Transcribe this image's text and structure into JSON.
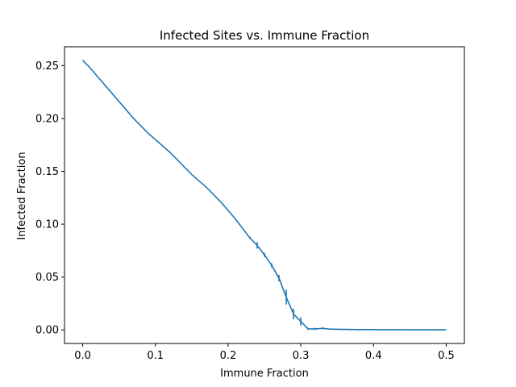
{
  "chart_data": {
    "type": "line",
    "title": "Infected Sites vs. Immune Fraction",
    "xlabel": "Immune Fraction",
    "ylabel": "Infected Fraction",
    "xlim": [
      -0.025,
      0.525
    ],
    "ylim": [
      -0.0128,
      0.2678
    ],
    "xticks": [
      0.0,
      0.1,
      0.2,
      0.3,
      0.4,
      0.5
    ],
    "xtick_labels": [
      "0.0",
      "0.1",
      "0.2",
      "0.3",
      "0.4",
      "0.5"
    ],
    "yticks": [
      0.0,
      0.05,
      0.1,
      0.15,
      0.2,
      0.25
    ],
    "ytick_labels": [
      "0.00",
      "0.05",
      "0.10",
      "0.15",
      "0.20",
      "0.25"
    ],
    "grid": false,
    "series_color": "#1f77b4",
    "series": [
      {
        "x": [
          0.0,
          0.01,
          0.02,
          0.03,
          0.04,
          0.05,
          0.06,
          0.07,
          0.08,
          0.09,
          0.1,
          0.11,
          0.12,
          0.13,
          0.14,
          0.15,
          0.16,
          0.17,
          0.18,
          0.19,
          0.2,
          0.21,
          0.22,
          0.23,
          0.24,
          0.25,
          0.26,
          0.27,
          0.28,
          0.29,
          0.3,
          0.31,
          0.32,
          0.33,
          0.34,
          0.35,
          0.36,
          0.37,
          0.38,
          0.39,
          0.4,
          0.41,
          0.42,
          0.43,
          0.44,
          0.45,
          0.46,
          0.47,
          0.48,
          0.49,
          0.5
        ],
        "y": [
          0.255,
          0.248,
          0.24,
          0.232,
          0.224,
          0.216,
          0.208,
          0.2,
          0.193,
          0.186,
          0.18,
          0.174,
          0.168,
          0.161,
          0.154,
          0.147,
          0.141,
          0.135,
          0.128,
          0.121,
          0.113,
          0.105,
          0.096,
          0.087,
          0.08,
          0.071,
          0.061,
          0.049,
          0.031,
          0.015,
          0.008,
          0.001,
          0.001,
          0.0015,
          0.0008,
          0.0006,
          0.0005,
          0.0004,
          0.0003,
          0.0003,
          0.0003,
          0.0002,
          0.0002,
          0.0002,
          0.0002,
          0.0001,
          0.0001,
          0.0001,
          0.0001,
          0.0001,
          0.0001
        ],
        "err": [
          0.0,
          0.0,
          0.0,
          0.0,
          0.0,
          0.0,
          0.0,
          0.0,
          0.0,
          0.0,
          0.0,
          0.0,
          0.0,
          0.0,
          0.0,
          0.0,
          0.0,
          0.0,
          0.0,
          0.0,
          0.0,
          0.0,
          0.0,
          0.001,
          0.003,
          0.002,
          0.002,
          0.003,
          0.007,
          0.005,
          0.004,
          0.001,
          0.001,
          0.001,
          0.0005,
          0.0003,
          0.0003,
          0.0002,
          0.0002,
          0.0002,
          0.0001,
          0.0001,
          0.0001,
          0.0001,
          0.0001,
          0.0001,
          0.0001,
          0.0001,
          0.0001,
          0.0001,
          0.0001
        ]
      }
    ]
  }
}
